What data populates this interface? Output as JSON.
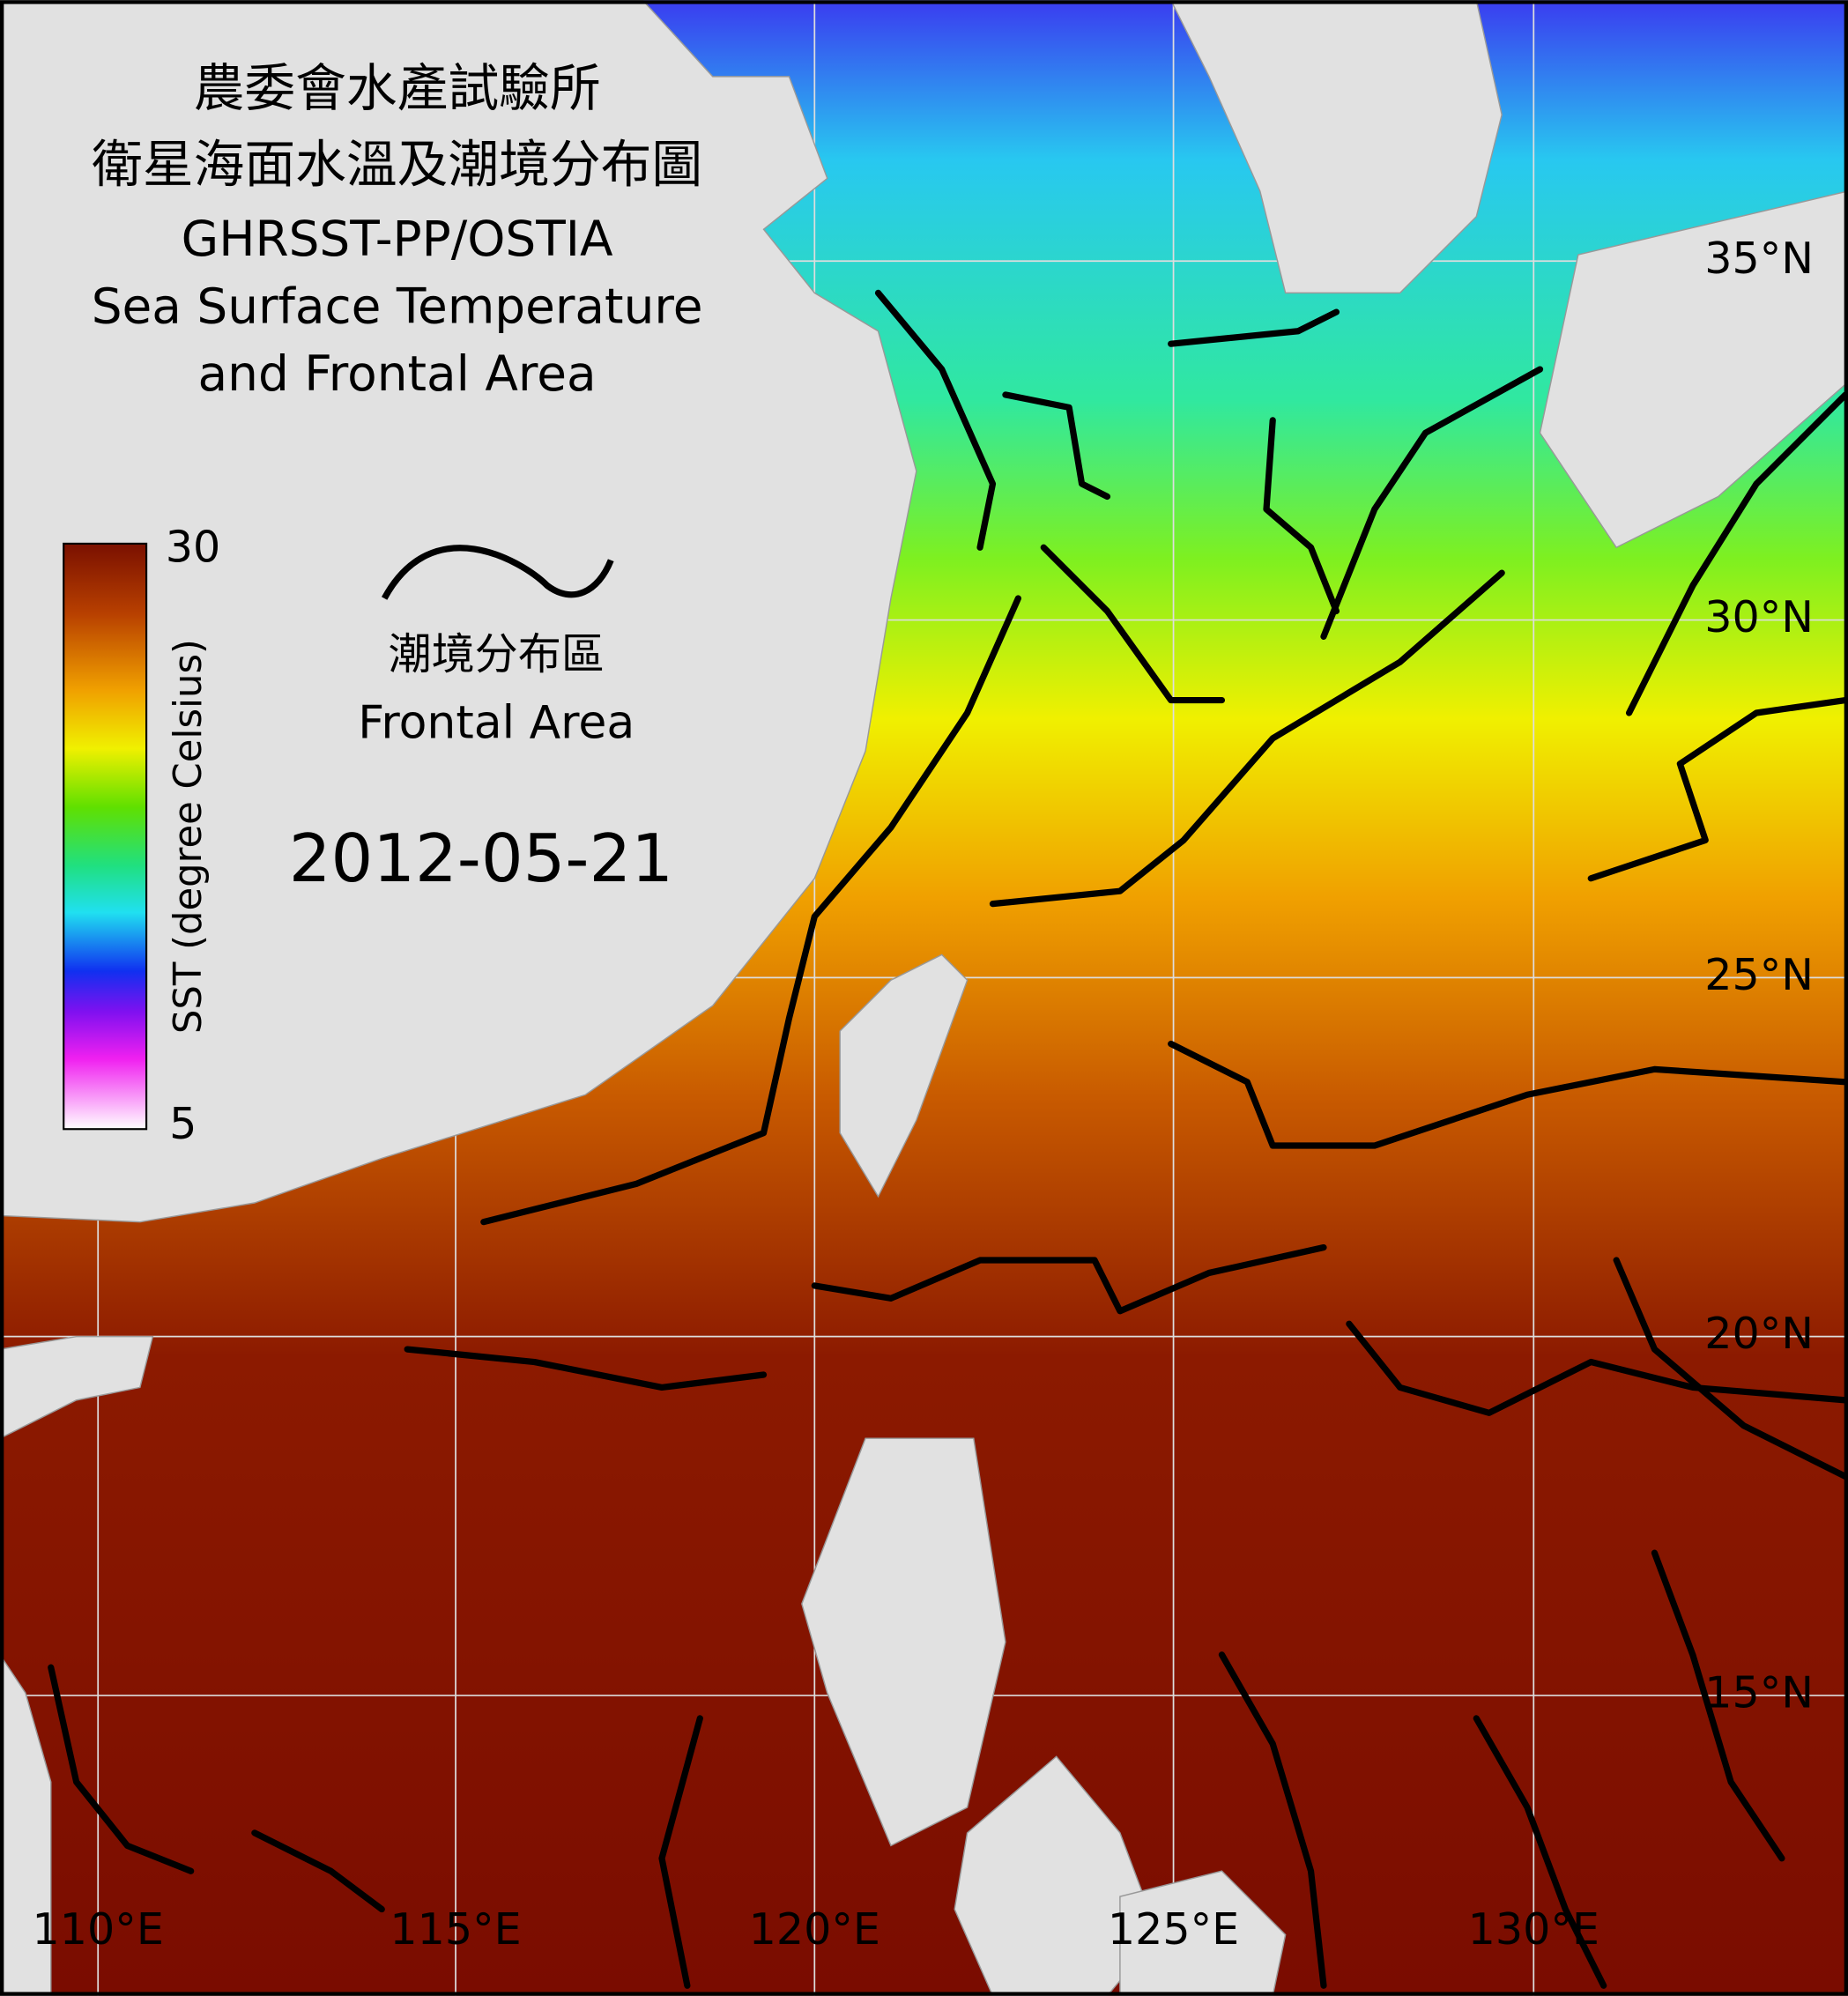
{
  "title": [
    "農委會水產試驗所",
    "衛星海面水溫及潮境分布圖",
    "GHRSST-PP/OSTIA",
    "Sea Surface Temperature",
    "and Frontal Area"
  ],
  "colorbar": {
    "max": 30,
    "min": 5,
    "label": "SST (degree Celsius)"
  },
  "frontal_legend": [
    "潮境分布區",
    "Frontal Area"
  ],
  "date": "2012-05-21",
  "lat_labels": [
    "35°N",
    "30°N",
    "25°N",
    "20°N",
    "15°N"
  ],
  "lon_labels": [
    "110°E",
    "115°E",
    "120°E",
    "125°E",
    "130°E"
  ]
}
